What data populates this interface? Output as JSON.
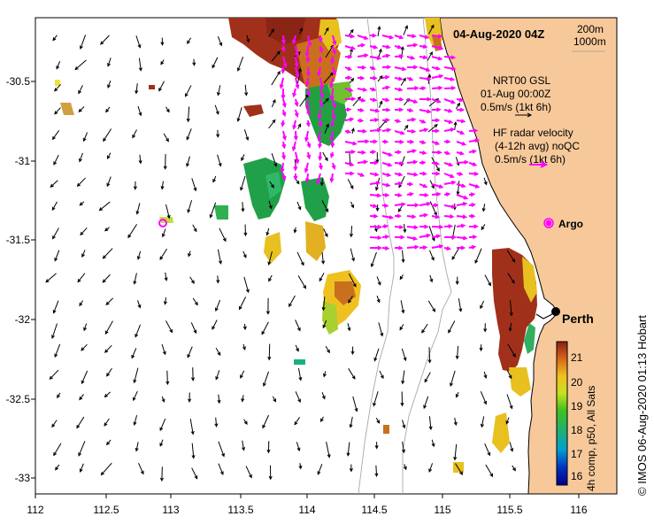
{
  "title": "04-Aug-2020 04Z",
  "depth_legend": [
    "200m",
    "1000m"
  ],
  "nrt_legend": [
    "NRT00 GSL",
    "01-Aug 00:00Z",
    "0.5m/s (1kt 6h)"
  ],
  "hf_legend": [
    "HF radar velocity",
    "(4-12h avg) noQC",
    "0.5m/s (1kt 6h)"
  ],
  "argo_label": "Argo",
  "city_label": "Perth",
  "credit": "© IMOS 06-Aug-2020 01:13 Hobart",
  "colorbar": {
    "title": "4h comp, p50, All Sats",
    "ticks": [
      "21",
      "20",
      "19",
      "18",
      "17",
      "16"
    ],
    "min": 15.7,
    "max": 21.7
  },
  "axes": {
    "x_ticks": [
      "112",
      "112.5",
      "113",
      "113.5",
      "114",
      "114.5",
      "115",
      "115.5",
      "116"
    ],
    "y_ticks": [
      "-30.5",
      "-31",
      "-31.5",
      "-32",
      "-32.5",
      "-33"
    ],
    "lon_range": [
      112.0,
      116.25
    ],
    "lat_range": [
      -33.1,
      -30.1
    ]
  },
  "colors": {
    "land": "#f7c99a",
    "hf_vector": "#ff00ff",
    "sst_hot": "#a0301a",
    "sst_mid": "#e8c020",
    "sst_cool": "#18a040"
  },
  "map_points": {
    "perth": {
      "lon": 115.86,
      "lat": -31.95
    },
    "argo": {
      "lon": 113.0,
      "lat": -31.4
    }
  }
}
